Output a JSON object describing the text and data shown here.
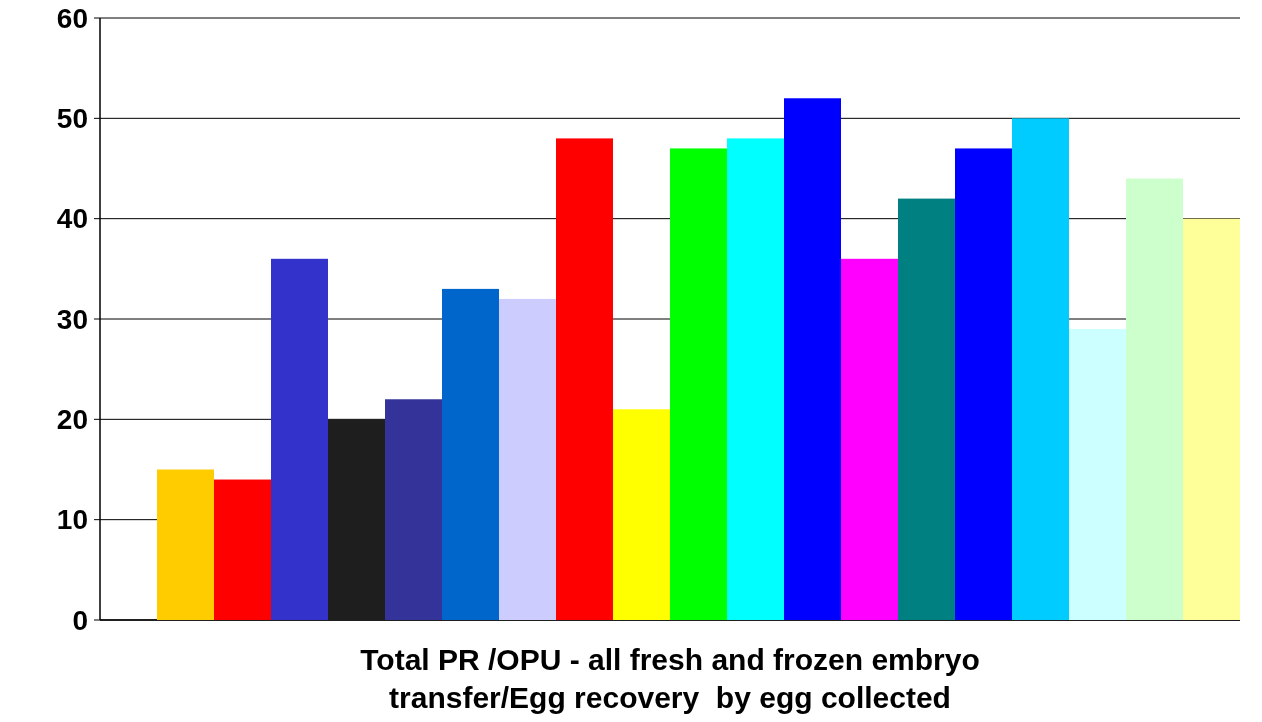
{
  "chart_data": {
    "type": "bar",
    "title": "Total PR /OPU - all fresh and frozen embryo transfer/Egg recovery  by egg collected",
    "categories": [
      null,
      null,
      null,
      null,
      null,
      null,
      null,
      null,
      null,
      null,
      null,
      null,
      null,
      null,
      null,
      null,
      null,
      null,
      null,
      null
    ],
    "values": [
      0,
      15,
      14,
      36,
      20,
      22,
      33,
      32,
      48,
      21,
      47,
      48,
      52,
      36,
      42,
      47,
      50,
      29,
      44,
      40
    ],
    "colors": [
      "#00a080",
      "#ffcc00",
      "#ff0000",
      "#3333cc",
      "#1e1e1e",
      "#333399",
      "#0066cc",
      "#ccccff",
      "#ff0000",
      "#ffff00",
      "#00ff00",
      "#00ffff",
      "#0000ff",
      "#ff00ff",
      "#008080",
      "#0000ff",
      "#00ccff",
      "#ccffff",
      "#ccffcc",
      "#ffff99"
    ],
    "ylim": [
      0,
      60
    ],
    "yticks": [
      0,
      10,
      20,
      30,
      40,
      50,
      60
    ],
    "grid": "y"
  }
}
